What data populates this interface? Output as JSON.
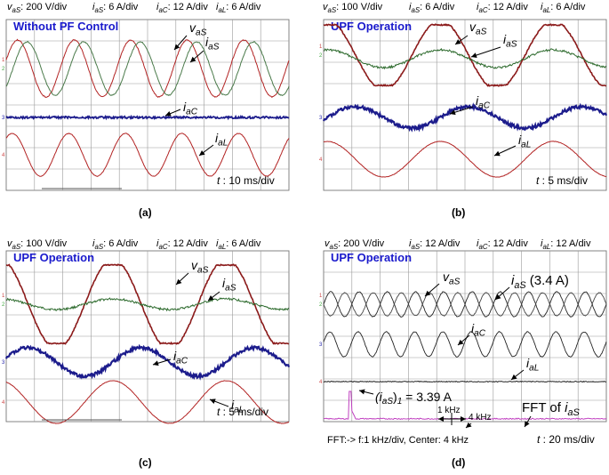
{
  "panels": [
    {
      "id": "a",
      "caption": "(a)",
      "scales": [
        {
          "sym": "v",
          "sub": "aS",
          "val": ": 200 V/div"
        },
        {
          "sym": "i",
          "sub": "aS",
          "val": ": 6 A/div"
        },
        {
          "sym": "i",
          "sub": "aC",
          "val": ": 12 A/div"
        },
        {
          "sym": "i",
          "sub": "aL",
          "val": ": 6 A/div"
        }
      ],
      "title": "Without PF Control",
      "time": {
        "sym": "t",
        "val": " : 10 ms/div"
      },
      "labels": [
        {
          "sym": "v",
          "sub": "aS",
          "suffix": ""
        },
        {
          "sym": "i",
          "sub": "aS",
          "suffix": ""
        },
        {
          "sym": "i",
          "sub": "aC",
          "suffix": ""
        },
        {
          "sym": "i",
          "sub": "aL",
          "suffix": ""
        }
      ],
      "chart_data": {
        "type": "line",
        "time_per_div_ms": 10,
        "series": [
          {
            "name": "vaS",
            "scale": "200 V/div",
            "color": "#b22222",
            "cycles_on_screen": 5
          },
          {
            "name": "iaS",
            "scale": "6 A/div",
            "color": "#4a7a4a",
            "cycles_on_screen": 5,
            "phase_lag_deg": 60
          },
          {
            "name": "iaC",
            "scale": "12 A/div",
            "color": "#1c1c8c",
            "cycles_on_screen": 0
          },
          {
            "name": "iaL",
            "scale": "6 A/div",
            "color": "#b22222",
            "cycles_on_screen": 5
          }
        ]
      }
    },
    {
      "id": "b",
      "caption": "(b)",
      "scales": [
        {
          "sym": "v",
          "sub": "aS",
          "val": ": 100 V/div"
        },
        {
          "sym": "i",
          "sub": "aS",
          "val": ": 6 A/div"
        },
        {
          "sym": "i",
          "sub": "aC",
          "val": ": 12 A/div"
        },
        {
          "sym": "i",
          "sub": "aL",
          "val": ": 6 A/div"
        }
      ],
      "title": "UPF Operation",
      "time": {
        "sym": "t",
        "val": " : 5 ms/div"
      },
      "labels": [
        {
          "sym": "v",
          "sub": "aS",
          "suffix": ""
        },
        {
          "sym": "i",
          "sub": "aS",
          "suffix": ""
        },
        {
          "sym": "i",
          "sub": "aC",
          "suffix": ""
        },
        {
          "sym": "i",
          "sub": "aL",
          "suffix": ""
        }
      ],
      "chart_data": {
        "type": "line",
        "time_per_div_ms": 5,
        "series": [
          {
            "name": "vaS",
            "scale": "100 V/div",
            "color": "#8b1a1a",
            "cycles_on_screen": 2.5
          },
          {
            "name": "iaS",
            "scale": "6 A/div",
            "color": "#2e6b2e",
            "cycles_on_screen": 2.5
          },
          {
            "name": "iaC",
            "scale": "12 A/div",
            "color": "#1c1c8c",
            "cycles_on_screen": 2.5
          },
          {
            "name": "iaL",
            "scale": "6 A/div",
            "color": "#b22222",
            "cycles_on_screen": 2.5
          }
        ]
      }
    },
    {
      "id": "c",
      "caption": "(c)",
      "scales": [
        {
          "sym": "v",
          "sub": "aS",
          "val": ": 100 V/div"
        },
        {
          "sym": "i",
          "sub": "aS",
          "val": ": 6 A/div"
        },
        {
          "sym": "i",
          "sub": "aC",
          "val": ": 12 A/div"
        },
        {
          "sym": "i",
          "sub": "aL",
          "val": ": 6 A/div"
        }
      ],
      "title": "UPF Operation",
      "time": {
        "sym": "t",
        "val": " : 5 ms/div"
      },
      "labels": [
        {
          "sym": "v",
          "sub": "aS",
          "suffix": ""
        },
        {
          "sym": "i",
          "sub": "aS",
          "suffix": ""
        },
        {
          "sym": "i",
          "sub": "aC",
          "suffix": ""
        },
        {
          "sym": "i",
          "sub": "aL",
          "suffix": ""
        }
      ],
      "chart_data": {
        "type": "line",
        "time_per_div_ms": 5,
        "series": [
          {
            "name": "vaS",
            "scale": "100 V/div",
            "color": "#8b1a1a",
            "cycles_on_screen": 2.5
          },
          {
            "name": "iaS",
            "scale": "6 A/div",
            "color": "#2e6b2e",
            "cycles_on_screen": 2.5
          },
          {
            "name": "iaC",
            "scale": "12 A/div",
            "color": "#1c1c8c",
            "cycles_on_screen": 2.5
          },
          {
            "name": "iaL",
            "scale": "6 A/div",
            "color": "#b22222",
            "cycles_on_screen": 2.5
          }
        ]
      }
    },
    {
      "id": "d",
      "caption": "(d)",
      "scales": [
        {
          "sym": "v",
          "sub": "aS",
          "val": ": 200 V/div"
        },
        {
          "sym": "i",
          "sub": "aS",
          "val": ": 12 A/div"
        },
        {
          "sym": "i",
          "sub": "aC",
          "val": ": 12 A/div"
        },
        {
          "sym": "i",
          "sub": "aL",
          "val": ": 12 A/div"
        }
      ],
      "title": "UPF Operation",
      "time": {
        "sym": "t",
        "val": " : 20 ms/div"
      },
      "labels": [
        {
          "sym": "v",
          "sub": "aS",
          "suffix": ""
        },
        {
          "sym": "i",
          "sub": "aS",
          "suffix": " (3.4 A)"
        },
        {
          "sym": "i",
          "sub": "aC",
          "suffix": ""
        },
        {
          "sym": "i",
          "sub": "aL",
          "suffix": ""
        }
      ],
      "fft_label": {
        "text": "FFT of ",
        "sym": "i",
        "sub": "aS"
      },
      "fundamental": {
        "sym": "(i",
        "sub": "aS",
        "after": ")",
        "sub2": "1",
        "val": " = 3.39 A"
      },
      "fft_footer": "FFT:-> f:1 kHz/div, Center: 4 kHz",
      "khz_1": "1 kHz",
      "khz_4": "4 kHz",
      "chart_data": {
        "type": "line",
        "time_per_div_ms": 20,
        "fft": {
          "freq_per_div_khz": 1,
          "center_khz": 4,
          "fundamental_A": 3.39
        },
        "series": [
          {
            "name": "vaS",
            "scale": "200 V/div",
            "color": "#222222",
            "cycles_on_screen": 10
          },
          {
            "name": "iaS",
            "scale": "12 A/div",
            "color": "#222222",
            "cycles_on_screen": 10,
            "rms_A": 3.4
          },
          {
            "name": "iaC",
            "scale": "12 A/div",
            "color": "#222222",
            "cycles_on_screen": 10
          },
          {
            "name": "iaL",
            "scale": "12 A/div",
            "color": "#222222",
            "cycles_on_screen": 0
          },
          {
            "name": "FFT",
            "color": "#c040c0"
          }
        ]
      }
    }
  ]
}
